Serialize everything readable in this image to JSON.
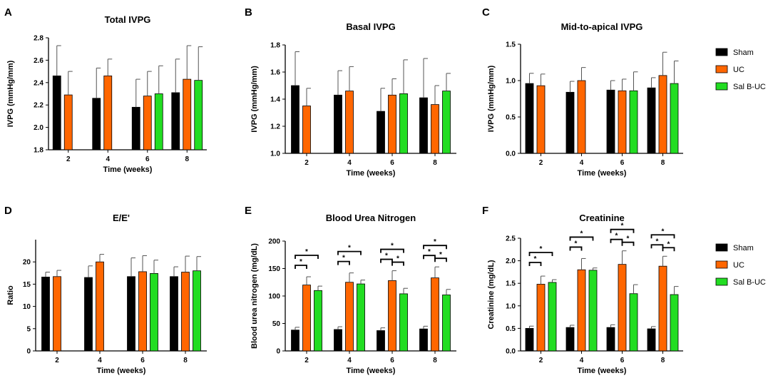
{
  "colors": {
    "Sham": "#000000",
    "UC": "#ff6600",
    "Sal B-UC": "#22dd22"
  },
  "legends": [
    {
      "items": [
        {
          "name": "Sham"
        },
        {
          "name": "UC"
        },
        {
          "name": "Sal B-UC"
        }
      ]
    },
    {
      "items": [
        {
          "name": "Sham"
        },
        {
          "name": "UC"
        },
        {
          "name": "Sal B-UC"
        }
      ]
    }
  ],
  "chart_data": [
    {
      "panel": "A",
      "type": "bar",
      "title": "Total IVPG",
      "xlabel": "Time (weeks)",
      "ylabel": "IVPG (mmHg/mm)",
      "categories": [
        "2",
        "4",
        "6",
        "8"
      ],
      "ylim": [
        1.8,
        2.8
      ],
      "yticks": [
        "1.8",
        "2.0",
        "2.2",
        "2.4",
        "2.6",
        "2.8"
      ],
      "series": [
        {
          "name": "Sham",
          "values": [
            2.46,
            2.26,
            2.18,
            2.31
          ],
          "errors": [
            0.27,
            0.27,
            0.25,
            0.3
          ]
        },
        {
          "name": "UC",
          "values": [
            2.29,
            2.46,
            2.28,
            2.43
          ],
          "errors": [
            0.21,
            0.15,
            0.22,
            0.3
          ]
        },
        {
          "name": "Sal B-UC",
          "values": [
            null,
            null,
            2.3,
            2.42
          ],
          "errors": [
            null,
            null,
            0.25,
            0.3
          ]
        }
      ],
      "significance": []
    },
    {
      "panel": "B",
      "type": "bar",
      "title": "Basal IVPG",
      "xlabel": "Time (weeks)",
      "ylabel": "IVPG (mmHg/mm)",
      "categories": [
        "2",
        "4",
        "6",
        "8"
      ],
      "ylim": [
        1.0,
        1.8
      ],
      "yticks": [
        "1.0",
        "1.2",
        "1.4",
        "1.6",
        "1.8"
      ],
      "series": [
        {
          "name": "Sham",
          "values": [
            1.5,
            1.43,
            1.31,
            1.41
          ],
          "errors": [
            0.25,
            0.18,
            0.17,
            0.29
          ]
        },
        {
          "name": "UC",
          "values": [
            1.35,
            1.46,
            1.43,
            1.36
          ],
          "errors": [
            0.13,
            0.18,
            0.12,
            0.14
          ]
        },
        {
          "name": "Sal B-UC",
          "values": [
            null,
            null,
            1.44,
            1.46
          ],
          "errors": [
            null,
            null,
            0.25,
            0.13
          ]
        }
      ],
      "significance": []
    },
    {
      "panel": "C",
      "type": "bar",
      "title": "Mid-to-apical IVPG",
      "xlabel": "Time (weeks)",
      "ylabel": "IVPG (mmHg/mm)",
      "categories": [
        "2",
        "4",
        "6",
        "8"
      ],
      "ylim": [
        0.0,
        1.5
      ],
      "yticks": [
        "0.0",
        "0.5",
        "1.0",
        "1.5"
      ],
      "series": [
        {
          "name": "Sham",
          "values": [
            0.96,
            0.84,
            0.87,
            0.9
          ],
          "errors": [
            0.14,
            0.15,
            0.13,
            0.14
          ]
        },
        {
          "name": "UC",
          "values": [
            0.93,
            1.0,
            0.86,
            1.07
          ],
          "errors": [
            0.16,
            0.18,
            0.16,
            0.32
          ]
        },
        {
          "name": "Sal B-UC",
          "values": [
            null,
            null,
            0.86,
            0.96
          ],
          "errors": [
            null,
            null,
            0.26,
            0.31
          ]
        }
      ],
      "significance": []
    },
    {
      "panel": "D",
      "type": "bar",
      "title": "E/E'",
      "xlabel": "Time (weeks)",
      "ylabel": "Ratio",
      "categories": [
        "2",
        "4",
        "6",
        "8"
      ],
      "ylim": [
        0,
        25
      ],
      "yticks": [
        "0",
        "5",
        "10",
        "15",
        "20"
      ],
      "series": [
        {
          "name": "Sham",
          "values": [
            16.6,
            16.5,
            16.7,
            16.7
          ],
          "errors": [
            1.1,
            2.6,
            4.2,
            2.2
          ]
        },
        {
          "name": "UC",
          "values": [
            16.7,
            20.0,
            17.8,
            17.7
          ],
          "errors": [
            1.4,
            1.7,
            3.6,
            3.6
          ]
        },
        {
          "name": "Sal B-UC",
          "values": [
            null,
            null,
            17.4,
            18.0
          ],
          "errors": [
            null,
            null,
            3.0,
            3.2
          ]
        }
      ],
      "significance": []
    },
    {
      "panel": "E",
      "type": "bar",
      "title": "Blood Urea Nitrogen",
      "xlabel": "Time (weeks)",
      "ylabel": "Blood urea nitrogen (mg/dL)",
      "categories": [
        "2",
        "4",
        "6",
        "8"
      ],
      "ylim": [
        0,
        200
      ],
      "yticks": [
        "0",
        "50",
        "100",
        "150",
        "200"
      ],
      "series": [
        {
          "name": "Sham",
          "values": [
            38,
            39,
            37,
            40
          ],
          "errors": [
            5,
            5,
            5,
            5
          ]
        },
        {
          "name": "UC",
          "values": [
            120,
            125,
            128,
            133
          ],
          "errors": [
            15,
            17,
            18,
            20
          ]
        },
        {
          "name": "Sal B-UC",
          "values": [
            110,
            122,
            104,
            102
          ],
          "errors": [
            8,
            7,
            10,
            10
          ]
        }
      ],
      "significance": [
        {
          "category": "2",
          "pairs": [
            [
              "Sham",
              "UC"
            ],
            [
              "Sham",
              "Sal B-UC"
            ]
          ],
          "label": "*"
        },
        {
          "category": "4",
          "pairs": [
            [
              "Sham",
              "UC"
            ],
            [
              "Sham",
              "Sal B-UC"
            ]
          ],
          "label": "*"
        },
        {
          "category": "6",
          "pairs": [
            [
              "Sham",
              "UC"
            ],
            [
              "Sham",
              "Sal B-UC"
            ],
            [
              "UC",
              "Sal B-UC"
            ]
          ],
          "label": "*"
        },
        {
          "category": "8",
          "pairs": [
            [
              "Sham",
              "UC"
            ],
            [
              "Sham",
              "Sal B-UC"
            ],
            [
              "UC",
              "Sal B-UC"
            ]
          ],
          "label": "*"
        }
      ]
    },
    {
      "panel": "F",
      "type": "bar",
      "title": "Creatinine",
      "xlabel": "Time (weeks)",
      "ylabel": "Creatinine (mg/dL)",
      "categories": [
        "2",
        "4",
        "6",
        "8"
      ],
      "ylim": [
        0.0,
        2.5
      ],
      "yticks": [
        "0.0",
        "0.5",
        "1.0",
        "1.5",
        "2.0",
        "2.5"
      ],
      "series": [
        {
          "name": "Sham",
          "values": [
            0.5,
            0.52,
            0.52,
            0.49
          ],
          "errors": [
            0.05,
            0.05,
            0.06,
            0.05
          ]
        },
        {
          "name": "UC",
          "values": [
            1.48,
            1.8,
            1.92,
            1.88
          ],
          "errors": [
            0.18,
            0.25,
            0.3,
            0.22
          ]
        },
        {
          "name": "Sal B-UC",
          "values": [
            1.52,
            1.79,
            1.27,
            1.25
          ],
          "errors": [
            0.06,
            0.05,
            0.2,
            0.18
          ]
        }
      ],
      "significance": [
        {
          "category": "2",
          "pairs": [
            [
              "Sham",
              "UC"
            ],
            [
              "Sham",
              "Sal B-UC"
            ]
          ],
          "label": "*"
        },
        {
          "category": "4",
          "pairs": [
            [
              "Sham",
              "UC"
            ],
            [
              "Sham",
              "Sal B-UC"
            ]
          ],
          "label": "*"
        },
        {
          "category": "6",
          "pairs": [
            [
              "Sham",
              "UC"
            ],
            [
              "Sham",
              "Sal B-UC"
            ],
            [
              "UC",
              "Sal B-UC"
            ]
          ],
          "label": "*"
        },
        {
          "category": "8",
          "pairs": [
            [
              "Sham",
              "UC"
            ],
            [
              "Sham",
              "Sal B-UC"
            ],
            [
              "UC",
              "Sal B-UC"
            ]
          ],
          "label": "*"
        }
      ]
    }
  ]
}
